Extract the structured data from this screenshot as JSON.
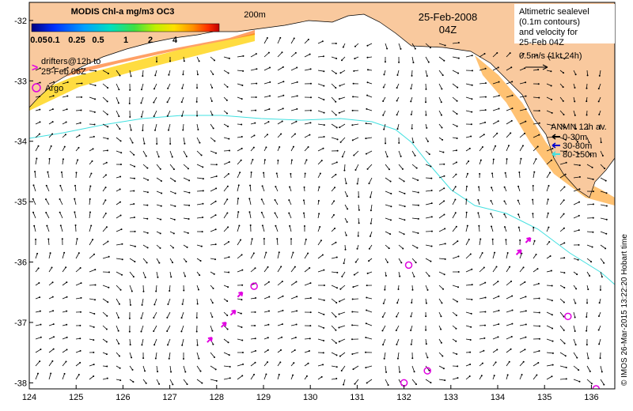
{
  "colorbar": {
    "title": "MODIS Chl-a mg/m3 OC3",
    "ticks": [
      "0.05",
      "0.1",
      "0.25",
      "0.5",
      "1",
      "2",
      "4"
    ],
    "colors": [
      "#000080",
      "#0030ff",
      "#00a0ff",
      "#00e0c0",
      "#40e040",
      "#c0f000",
      "#ffe000",
      "#ff9000",
      "#ff3000",
      "#c00000"
    ]
  },
  "isobath_label": "200m",
  "date_label": "25-Feb-2008",
  "time_label": "04Z",
  "altimetry_note": [
    "Altimetric sealevel",
    "(0.1m contours)",
    "and velocity for",
    "25-Feb 04Z"
  ],
  "scale_note": "0.5m/s (1kt 24h)",
  "drifters_note": [
    "drifters@12h to",
    "25-Feb 06Z"
  ],
  "drifter_marker": ">",
  "argo_label": "Argo",
  "anmn_legend": {
    "title": "ANMN 12h av.",
    "entries": [
      {
        "label": "0-30m",
        "color": "#000000"
      },
      {
        "label": "30-80m",
        "color": "#0000cc"
      },
      {
        "label": "80-150m",
        "color": "#40e0e0"
      }
    ]
  },
  "credit": "© IMOS 26-Mar-2015 13:22:20 Hobart time",
  "axes": {
    "x_ticks": [
      "124",
      "125",
      "126",
      "127",
      "128",
      "129",
      "130",
      "131",
      "132",
      "133",
      "134",
      "135",
      "136"
    ],
    "y_ticks": [
      "-32",
      "-33",
      "-34",
      "-35",
      "-36",
      "-37",
      "-38"
    ],
    "lon_range": [
      124,
      136.5
    ],
    "lat_range": [
      -38.1,
      -31.7
    ]
  },
  "argo_floats": [
    [
      128.8,
      -36.4
    ],
    [
      132.1,
      -36.05
    ],
    [
      132.5,
      -37.8
    ],
    [
      132.0,
      -38.0
    ],
    [
      135.5,
      -36.9
    ],
    [
      136.1,
      -38.1
    ]
  ],
  "drifters": [
    [
      127.9,
      -37.25
    ],
    [
      128.2,
      -37.0
    ],
    [
      128.4,
      -36.8
    ],
    [
      128.55,
      -36.5
    ],
    [
      134.5,
      -35.8
    ],
    [
      134.7,
      -35.6
    ]
  ],
  "colors": {
    "land": "#f9c99e",
    "argo": "#e000e0",
    "drifter": "#e000e0",
    "isobath": "#40e0e0",
    "frame": "#000000"
  }
}
